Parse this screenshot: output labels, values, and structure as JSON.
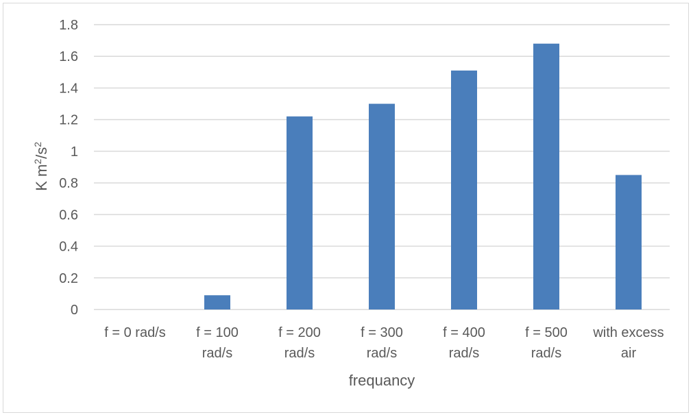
{
  "chart_data": {
    "type": "bar",
    "categories": [
      [
        "f = 0 rad/s"
      ],
      [
        "f = 100",
        "rad/s"
      ],
      [
        "f = 200",
        "rad/s"
      ],
      [
        "f = 300",
        "rad/s"
      ],
      [
        "f = 400",
        "rad/s"
      ],
      [
        "f = 500",
        "rad/s"
      ],
      [
        "with excess",
        "air"
      ]
    ],
    "values": [
      0,
      0.09,
      1.22,
      1.3,
      1.51,
      1.68,
      0.85
    ],
    "title": "",
    "xlabel": "frequancy",
    "ylabel": {
      "base": "K  m",
      "sup1": "2",
      "mid": "/s",
      "sup2": "2"
    },
    "ylim": [
      0,
      1.8
    ],
    "yticks": [
      "0",
      "0.2",
      "0.4",
      "0.6",
      "0.8",
      "1",
      "1.2",
      "1.4",
      "1.6",
      "1.8"
    ],
    "grid": true,
    "legend": "none",
    "bar_color": "#4a7ebb",
    "grid_color": "#d9d9d9"
  }
}
